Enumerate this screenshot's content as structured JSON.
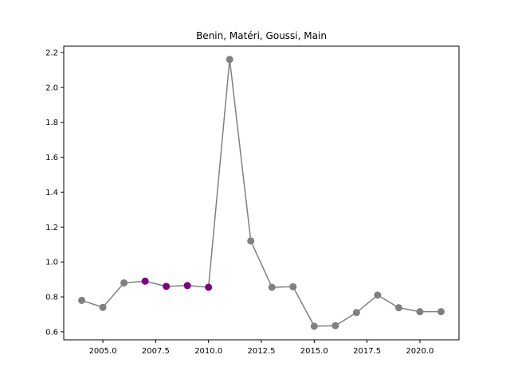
{
  "chart_data": {
    "type": "line",
    "title": "Benin, Matéri, Goussi, Main",
    "xlabel": "",
    "ylabel": "",
    "xlim": [
      2003.15,
      2021.85
    ],
    "ylim": [
      0.554,
      2.236
    ],
    "xticks": [
      2005.0,
      2007.5,
      2010.0,
      2012.5,
      2015.0,
      2017.5,
      2020.0
    ],
    "xtick_labels": [
      "2005.0",
      "2007.5",
      "2010.0",
      "2012.5",
      "2015.0",
      "2017.5",
      "2020.0"
    ],
    "yticks": [
      0.6,
      0.8,
      1.0,
      1.2,
      1.4,
      1.6,
      1.8,
      2.0,
      2.2
    ],
    "ytick_labels": [
      "0.6",
      "0.8",
      "1.0",
      "1.2",
      "1.4",
      "1.6",
      "1.8",
      "2.0",
      "2.2"
    ],
    "grid": false,
    "line_color": "#808080",
    "marker_color_default": "#808080",
    "marker_color_highlight": "#800080",
    "series": [
      {
        "x": [
          2004,
          2005,
          2006,
          2007,
          2008,
          2009,
          2010,
          2011,
          2012,
          2013,
          2014,
          2015,
          2016,
          2017,
          2018,
          2019,
          2020,
          2021
        ],
        "values": [
          0.78,
          0.74,
          0.88,
          0.89,
          0.86,
          0.865,
          0.855,
          2.16,
          1.12,
          0.855,
          0.858,
          0.632,
          0.635,
          0.71,
          0.81,
          0.738,
          0.715,
          0.715
        ],
        "highlight": [
          false,
          false,
          false,
          true,
          true,
          true,
          true,
          false,
          false,
          false,
          false,
          false,
          false,
          false,
          false,
          false,
          false,
          false
        ]
      }
    ]
  }
}
